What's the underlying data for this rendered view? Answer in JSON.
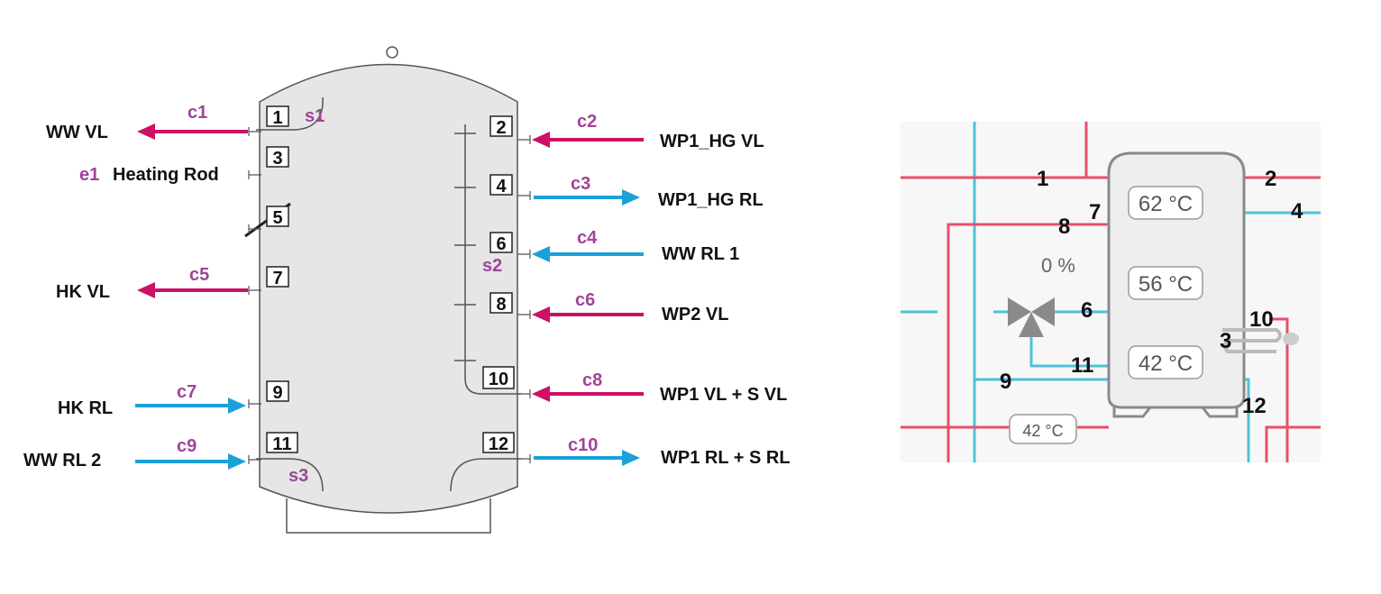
{
  "colors": {
    "hot": "#cc1166",
    "cold": "#1ba1d8",
    "tag": "#a0449a",
    "tank_fill": "#e6e6e6",
    "tank_stroke": "#555555",
    "right_hot": "#e8506a",
    "right_cold": "#4cc3d6"
  },
  "left": {
    "left_lines": [
      {
        "name": "ww-vl",
        "label": "WW VL",
        "tag": "c1",
        "dir": "out",
        "color": "hot"
      },
      {
        "name": "heating-rod",
        "label": "Heating Rod",
        "tag": "e1",
        "dir": "none",
        "color": "none"
      },
      {
        "name": "hk-vl",
        "label": "HK VL",
        "tag": "c5",
        "dir": "out",
        "color": "hot"
      },
      {
        "name": "hk-rl",
        "label": "HK RL",
        "tag": "c7",
        "dir": "in",
        "color": "cold"
      },
      {
        "name": "ww-rl-2",
        "label": "WW RL 2",
        "tag": "c9",
        "dir": "in",
        "color": "cold"
      }
    ],
    "right_lines": [
      {
        "name": "wp1-hg-vl",
        "label": "WP1_HG VL",
        "tag": "c2",
        "dir": "in",
        "color": "hot"
      },
      {
        "name": "wp1-hg-rl",
        "label": "WP1_HG RL",
        "tag": "c3",
        "dir": "out",
        "color": "cold"
      },
      {
        "name": "ww-rl-1",
        "label": "WW RL 1",
        "tag": "c4",
        "dir": "in",
        "color": "cold"
      },
      {
        "name": "wp2-vl",
        "label": "WP2 VL",
        "tag": "c6",
        "dir": "in",
        "color": "hot"
      },
      {
        "name": "wp1-vl-s-vl",
        "label": "WP1 VL + S VL",
        "tag": "c8",
        "dir": "in",
        "color": "hot"
      },
      {
        "name": "wp1-rl-s-rl",
        "label": "WP1 RL + S RL",
        "tag": "c10",
        "dir": "out",
        "color": "cold"
      }
    ],
    "ports": [
      "1",
      "2",
      "3",
      "4",
      "5",
      "6",
      "7",
      "8",
      "9",
      "10",
      "11",
      "12"
    ],
    "sensors": [
      "s1",
      "s2",
      "s3"
    ]
  },
  "right": {
    "numbers": [
      "1",
      "2",
      "4",
      "7",
      "8",
      "6",
      "10",
      "3",
      "11",
      "9",
      "12"
    ],
    "temps": [
      "62 °C",
      "56 °C",
      "42 °C"
    ],
    "pipe_temp": "42 °C",
    "valve_pct": "0 %"
  }
}
